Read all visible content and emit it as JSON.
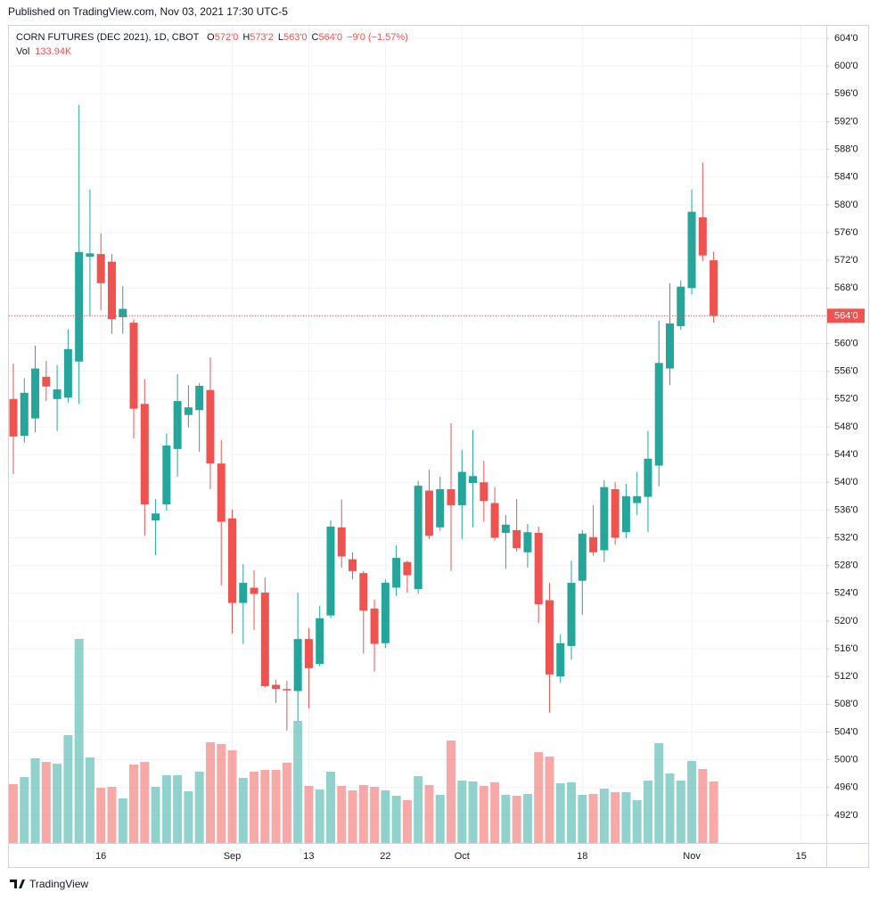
{
  "published": "Published on TradingView.com, Nov 03, 2021 17:30 UTC-5",
  "footer": "TradingView",
  "chart_data": {
    "type": "candlestick",
    "title": "CORN FUTURES (DEC 2021), 1D, CBOT",
    "ohlc_legend": [
      {
        "key": "O",
        "value": "572'0"
      },
      {
        "key": "H",
        "value": "573'2"
      },
      {
        "key": "L",
        "value": "563'0"
      },
      {
        "key": "C",
        "value": "564'0"
      }
    ],
    "change": "−9'0 (−1.57%)",
    "volume_name": "Vol",
    "volume_label": "133.94K",
    "up_color": "#26a69a",
    "down_color": "#ef5350",
    "last_price": {
      "value": 564,
      "label": "564'0"
    },
    "categories": [
      null,
      null,
      null,
      null,
      null,
      null,
      null,
      null,
      "16",
      null,
      null,
      null,
      null,
      null,
      null,
      null,
      null,
      null,
      null,
      null,
      "Sep",
      null,
      null,
      null,
      null,
      null,
      null,
      "13",
      null,
      null,
      null,
      null,
      null,
      null,
      "22",
      null,
      null,
      null,
      null,
      null,
      null,
      "Oct",
      null,
      null,
      null,
      null,
      null,
      null,
      null,
      null,
      null,
      null,
      "18",
      null,
      null,
      null,
      null,
      null,
      null,
      null,
      null,
      null,
      "Nov",
      null,
      null,
      null,
      null,
      null,
      null,
      null,
      null,
      null,
      "15",
      null,
      null
    ],
    "open": [
      552.0,
      546.7,
      549.2,
      555.2,
      552.0,
      552.2,
      557.4,
      572.5,
      572.9,
      571.8,
      563.8,
      563.0,
      551.3,
      534.5,
      536.8,
      544.8,
      549.7,
      550.4,
      553.3,
      542.7,
      534.8,
      522.6,
      524.8,
      524.1,
      510.8,
      510.2,
      509.9,
      517.4,
      513.8,
      520.8,
      533.5,
      528.9,
      526.9,
      521.8,
      516.8,
      524.8,
      528.5,
      524.6,
      538.8,
      533.5,
      539.0,
      536.7,
      539.9,
      540.0,
      537.0,
      532.7,
      533.1,
      529.9,
      532.7,
      523.0,
      512.0,
      516.4,
      525.8,
      532.1,
      530.2,
      539.0,
      532.8,
      537.0,
      537.9,
      542.4,
      556.4,
      562.5,
      568.0,
      578.2,
      572,
      null,
      null,
      null,
      null,
      null,
      null,
      null,
      null,
      null,
      null
    ],
    "high": [
      557.1,
      555.0,
      559.7,
      557.5,
      556.9,
      562.0,
      594.4,
      582.2,
      575.9,
      572.9,
      568.3,
      563.5,
      554.9,
      537.6,
      547.0,
      555.6,
      554.0,
      554.3,
      558.0,
      546.1,
      536.1,
      528.2,
      527.3,
      526.3,
      511.5,
      511.4,
      524.1,
      519.0,
      522.2,
      534.5,
      537.5,
      529.9,
      527.2,
      523.1,
      526.0,
      530.9,
      528.7,
      540.2,
      541.8,
      540.8,
      548.5,
      544.7,
      547.5,
      543.1,
      539.3,
      535.3,
      537.6,
      534.0,
      533.6,
      525.5,
      518.1,
      528.7,
      533.1,
      536.7,
      540.3,
      540.0,
      539.8,
      541.5,
      547.4,
      563.3,
      568.7,
      569.1,
      582.2,
      586.1,
      573.25,
      null,
      null,
      null,
      null,
      null,
      null,
      null,
      null,
      null,
      null
    ],
    "low": [
      541.2,
      545.7,
      547.2,
      551.7,
      547.4,
      551.5,
      551.3,
      563.9,
      564.8,
      561.4,
      561.4,
      546.3,
      532.3,
      529.5,
      535.9,
      540.8,
      547.9,
      544.4,
      539.0,
      525.1,
      518.2,
      516.7,
      518.7,
      510.4,
      508.2,
      504.2,
      505.6,
      507.4,
      513.5,
      520.4,
      527.7,
      526.0,
      515.3,
      512.7,
      516.1,
      523.6,
      524.1,
      523.9,
      531.8,
      533.0,
      527.2,
      531.8,
      533.5,
      534.3,
      531.6,
      527.5,
      530.0,
      527.7,
      519.7,
      506.8,
      511.1,
      514.4,
      520.9,
      529.4,
      528.5,
      531.0,
      531.9,
      535.3,
      532.8,
      539.4,
      554.0,
      562.0,
      567.1,
      571.9,
      563,
      null,
      null,
      null,
      null,
      null,
      null,
      null,
      null,
      null,
      null
    ],
    "close": [
      546.6,
      552.9,
      556.4,
      553.8,
      553.4,
      559.2,
      573.2,
      573.0,
      568.7,
      563.5,
      565.0,
      550.6,
      536.8,
      535.5,
      545.3,
      551.7,
      550.8,
      553.9,
      542.7,
      534.3,
      522.6,
      525.5,
      523.9,
      510.6,
      510.2,
      510.0,
      517.4,
      513.2,
      520.4,
      533.6,
      529.3,
      527.2,
      521.5,
      516.7,
      525.5,
      529.1,
      526.6,
      539.5,
      532.3,
      539.0,
      536.7,
      541.5,
      540.9,
      537.3,
      532.0,
      533.9,
      530.5,
      532.8,
      522.4,
      512.3,
      516.8,
      525.5,
      532.6,
      529.9,
      539.3,
      532.0,
      538.0,
      538.0,
      543.4,
      557.2,
      562.9,
      568.2,
      579.0,
      572.7,
      564,
      null,
      null,
      null,
      null,
      null,
      null,
      null,
      null,
      null,
      null
    ],
    "volume": [
      128100,
      143600,
      184400,
      176600,
      172700,
      234900,
      444500,
      186300,
      120300,
      122300,
      97100,
      170800,
      176600,
      122300,
      147500,
      147500,
      112600,
      155300,
      219300,
      215500,
      201900,
      141700,
      155300,
      159200,
      159200,
      174700,
      265900,
      124200,
      116500,
      155300,
      124200,
      114500,
      126200,
      122300,
      114500,
      102900,
      93200,
      145600,
      126200,
      104800,
      223200,
      135900,
      133900,
      124200,
      132000,
      104800,
      102900,
      106800,
      198000,
      188300,
      130000,
      132000,
      104800,
      106800,
      118400,
      110600,
      110600,
      93200,
      135900,
      217400,
      151400,
      135900,
      178600,
      161100,
      133940,
      null,
      null,
      null,
      null,
      null,
      null,
      null,
      null,
      null,
      null
    ],
    "ylim": [
      488.0,
      605.93
    ],
    "yticks": [
      {
        "value": 604,
        "label": "604'0"
      },
      {
        "value": 600,
        "label": "600'0"
      },
      {
        "value": 596,
        "label": "596'0"
      },
      {
        "value": 592,
        "label": "592'0"
      },
      {
        "value": 588,
        "label": "588'0"
      },
      {
        "value": 584,
        "label": "584'0"
      },
      {
        "value": 580,
        "label": "580'0"
      },
      {
        "value": 576,
        "label": "576'0"
      },
      {
        "value": 572,
        "label": "572'0"
      },
      {
        "value": 568,
        "label": "568'0"
      },
      {
        "value": 564,
        "label": "564'0"
      },
      {
        "value": 560,
        "label": "560'0"
      },
      {
        "value": 556,
        "label": "556'0"
      },
      {
        "value": 552,
        "label": "552'0"
      },
      {
        "value": 548,
        "label": "548'0"
      },
      {
        "value": 544,
        "label": "544'0"
      },
      {
        "value": 540,
        "label": "540'0"
      },
      {
        "value": 536,
        "label": "536'0"
      },
      {
        "value": 532,
        "label": "532'0"
      },
      {
        "value": 528,
        "label": "528'0"
      },
      {
        "value": 524,
        "label": "524'0"
      },
      {
        "value": 520,
        "label": "520'0"
      },
      {
        "value": 516,
        "label": "516'0"
      },
      {
        "value": 512,
        "label": "512'0"
      },
      {
        "value": 508,
        "label": "508'0"
      },
      {
        "value": 504,
        "label": "504'0"
      },
      {
        "value": 500,
        "label": "500'0"
      },
      {
        "value": 496,
        "label": "496'0"
      },
      {
        "value": 492,
        "label": "492'0"
      }
    ],
    "grid": true
  }
}
